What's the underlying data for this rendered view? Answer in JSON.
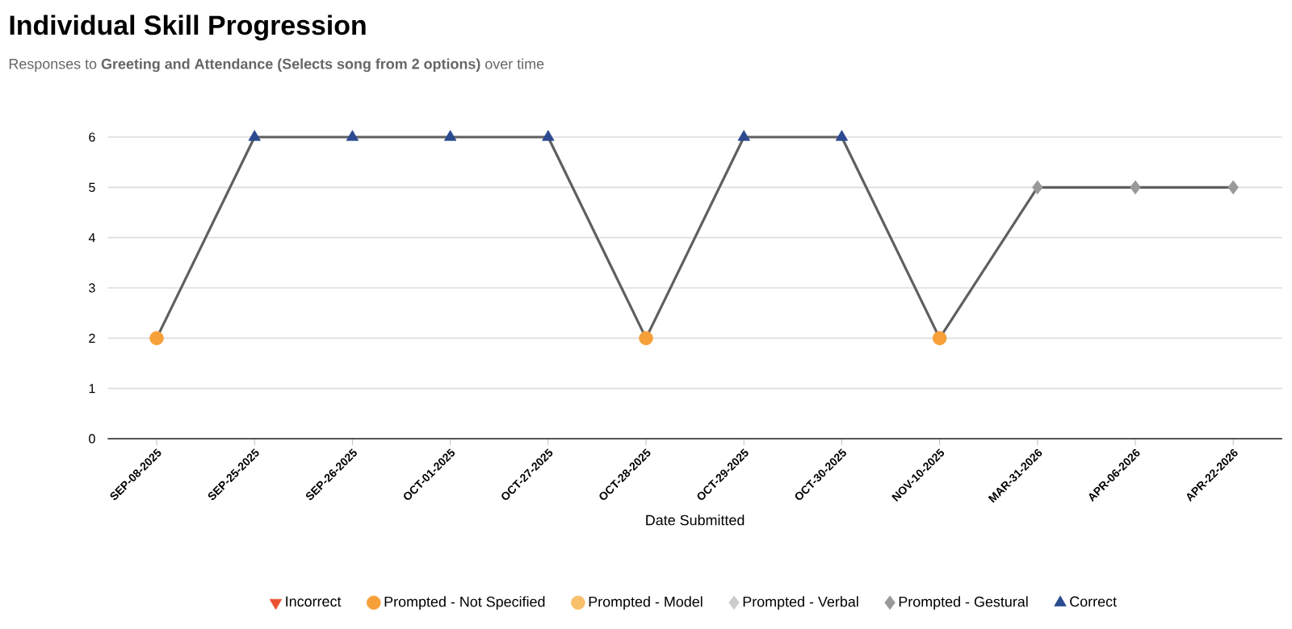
{
  "chart_data": {
    "type": "line",
    "title": "Individual Skill Progression",
    "subtitle": "Responses to **Greeting and Attendance (Selects song from 2 options)** over time",
    "xlabel": "Date Submitted",
    "categories": [
      "SEP-08-2025",
      "SEP-25-2025",
      "SEP-26-2025",
      "OCT-01-2025",
      "OCT-27-2025",
      "OCT-28-2025",
      "OCT-29-2025",
      "OCT-30-2025",
      "NOV-10-2025",
      "MAR-31-2026",
      "APR-06-2026",
      "APR-22-2026"
    ],
    "series": [
      {
        "color": "#5f5f5f",
        "values": [
          2,
          6,
          6,
          6,
          6,
          2,
          6,
          6,
          2,
          5,
          5,
          5
        ]
      },
      {
        "type": "scatter",
        "name": "Incorrect",
        "color": "#e8502f",
        "marker": "triangle-down",
        "values": [
          null,
          null,
          null,
          null,
          null,
          null,
          null,
          null,
          null,
          null,
          null,
          null
        ]
      },
      {
        "type": "scatter",
        "name": "Prompted - Not Specified",
        "color": "#f7a03a",
        "marker": "circle",
        "values": [
          2,
          null,
          null,
          null,
          null,
          2,
          null,
          null,
          2,
          null,
          null,
          null
        ]
      },
      {
        "type": "scatter",
        "name": "Prompted - Model",
        "color": "#f9c06b",
        "marker": "circle",
        "values": [
          null,
          null,
          null,
          null,
          null,
          null,
          null,
          null,
          null,
          null,
          null,
          null
        ]
      },
      {
        "type": "scatter",
        "name": "Prompted - Verbal",
        "color": "#cccccc",
        "marker": "diamond",
        "values": [
          null,
          null,
          null,
          null,
          null,
          null,
          null,
          null,
          null,
          null,
          null,
          null
        ]
      },
      {
        "type": "scatter",
        "name": "Prompted - Gestural",
        "color": "#999999",
        "marker": "diamond",
        "values": [
          null,
          null,
          null,
          null,
          null,
          null,
          null,
          null,
          null,
          5,
          5,
          5
        ]
      },
      {
        "type": "scatter",
        "name": "Correct",
        "color": "#2b4a8f",
        "marker": "triangle",
        "values": [
          null,
          6,
          6,
          6,
          6,
          null,
          6,
          6,
          null,
          null,
          null,
          null
        ]
      }
    ],
    "ylim": [
      0,
      6
    ],
    "yticks": [
      0,
      1,
      2,
      3,
      4,
      5,
      6
    ],
    "grid": "y",
    "legend": "bottom",
    "line_style": "solid"
  }
}
